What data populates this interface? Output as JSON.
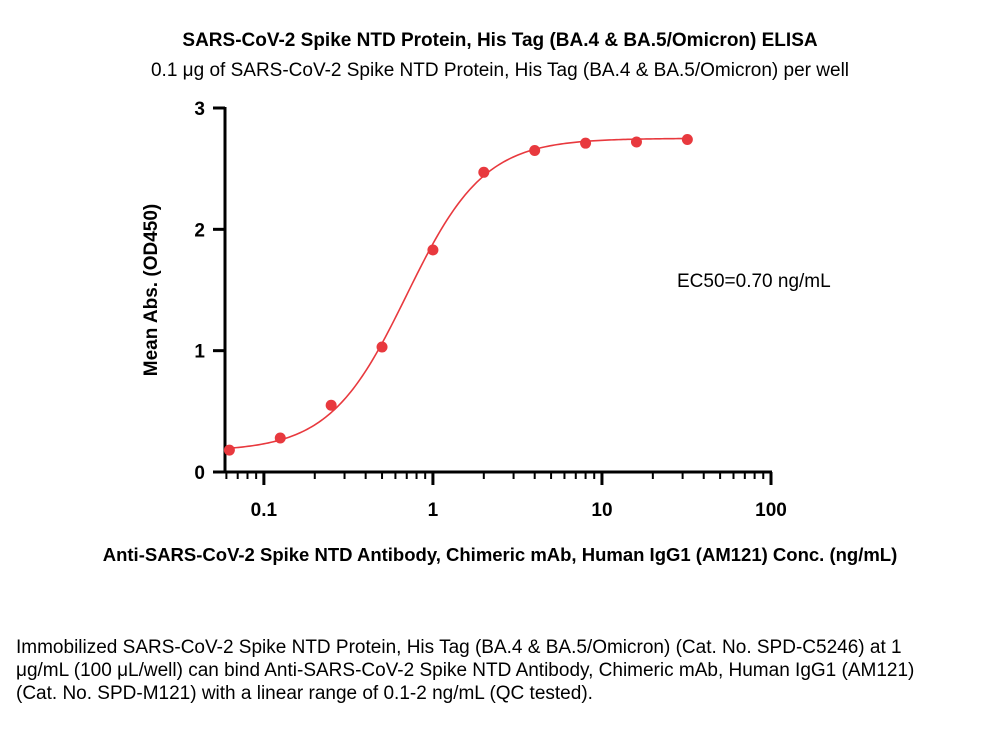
{
  "chart_data": {
    "type": "scatter",
    "title": "SARS-CoV-2 Spike NTD Protein, His Tag (BA.4 & BA.5/Omicron) ELISA",
    "subtitle": "0.1 μg of SARS-CoV-2 Spike NTD Protein, His Tag (BA.4 & BA.5/Omicron) per well",
    "xlabel": "Anti-SARS-CoV-2 Spike NTD Antibody, Chimeric mAb, Human IgG1 (AM121) Conc. (ng/mL)",
    "ylabel": "Mean Abs. (OD450)",
    "x_scale": "log",
    "xlim": [
      0.05,
      100
    ],
    "ylim": [
      0,
      3
    ],
    "x_ticks": [
      0.1,
      1,
      10,
      100
    ],
    "x_tick_labels": [
      "0.1",
      "1",
      "10",
      "100"
    ],
    "y_ticks": [
      0,
      1,
      2,
      3
    ],
    "y_tick_labels": [
      "0",
      "1",
      "2",
      "3"
    ],
    "grid": false,
    "series": [
      {
        "color": "#e8393e",
        "x": [
          0.0625,
          0.125,
          0.25,
          0.5,
          1,
          2,
          4,
          8,
          16,
          32
        ],
        "values": [
          0.18,
          0.28,
          0.55,
          1.03,
          1.83,
          2.47,
          2.65,
          2.71,
          2.72,
          2.74
        ]
      }
    ],
    "fit_curve": {
      "model": "4PL",
      "bottom": 0.17,
      "top": 2.75,
      "ec50": 0.7,
      "hill": 1.9,
      "color": "#e8393e"
    },
    "annotation": "EC50=0.70 ng/mL"
  },
  "caption": "Immobilized SARS-CoV-2 Spike NTD Protein, His Tag (BA.4 & BA.5/Omicron) (Cat. No. SPD-C5246) at 1 μg/mL (100 μL/well) can bind Anti-SARS-CoV-2 Spike NTD Antibody, Chimeric mAb, Human IgG1 (AM121) (Cat. No. SPD-M121) with a linear range of 0.1-2 ng/mL (QC tested)."
}
